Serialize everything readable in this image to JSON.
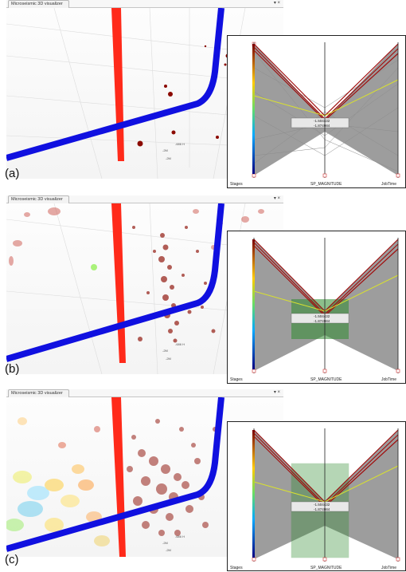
{
  "window_title": "Microseismic 3D visualizer",
  "window_controls": "▾ ×",
  "captions": [
    "(a)",
    "(b)",
    "(c)"
  ],
  "axis_labels": [
    "Stages",
    "SP_MAGNITUDE",
    "JobTime"
  ],
  "filter_values": [
    "-1.504432",
    "-1.874984"
  ],
  "scene_ticks": [
    "-686 H",
    "-2M",
    "-2M"
  ],
  "colors": {
    "well_red": "#ff2a1a",
    "well_blue": "#1010e0",
    "event_dark": "#8b0a00",
    "pc_lines": "#8c8c8c",
    "pc_red": "#a01010",
    "pc_yellow": "#d8e030",
    "brush_fill": "#2e8b2e"
  }
}
